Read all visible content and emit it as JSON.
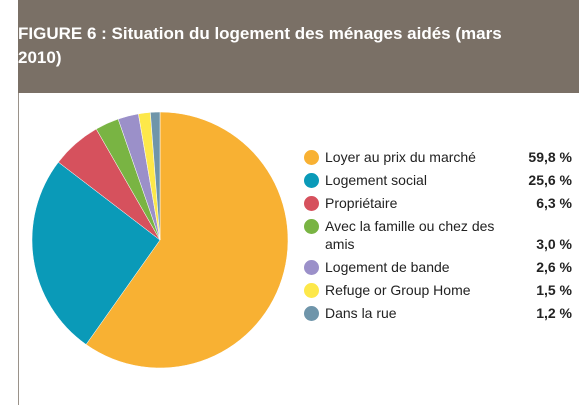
{
  "chart_data": {
    "type": "pie",
    "title": "FIGURE 6 : Situation du logement des ménages aidés (mars 2010)",
    "categories": [
      "Loyer au prix du marché",
      "Logement social",
      "Propriétaire",
      "Avec la famille ou chez des amis",
      "Logement de bande",
      "Refuge or Group Home",
      "Dans la rue"
    ],
    "values": [
      59.8,
      25.6,
      6.3,
      3.0,
      2.6,
      1.5,
      1.2
    ],
    "value_labels": [
      "59,8 %",
      "25,6 %",
      "6,3 %",
      "3,0 %",
      "2,6 %",
      "1,5 %",
      "1,2 %"
    ],
    "colors": [
      "#f8b133",
      "#0a9ab8",
      "#d6515d",
      "#79b443",
      "#9b90c9",
      "#fde84a",
      "#6f95aa"
    ],
    "legend": "right"
  }
}
